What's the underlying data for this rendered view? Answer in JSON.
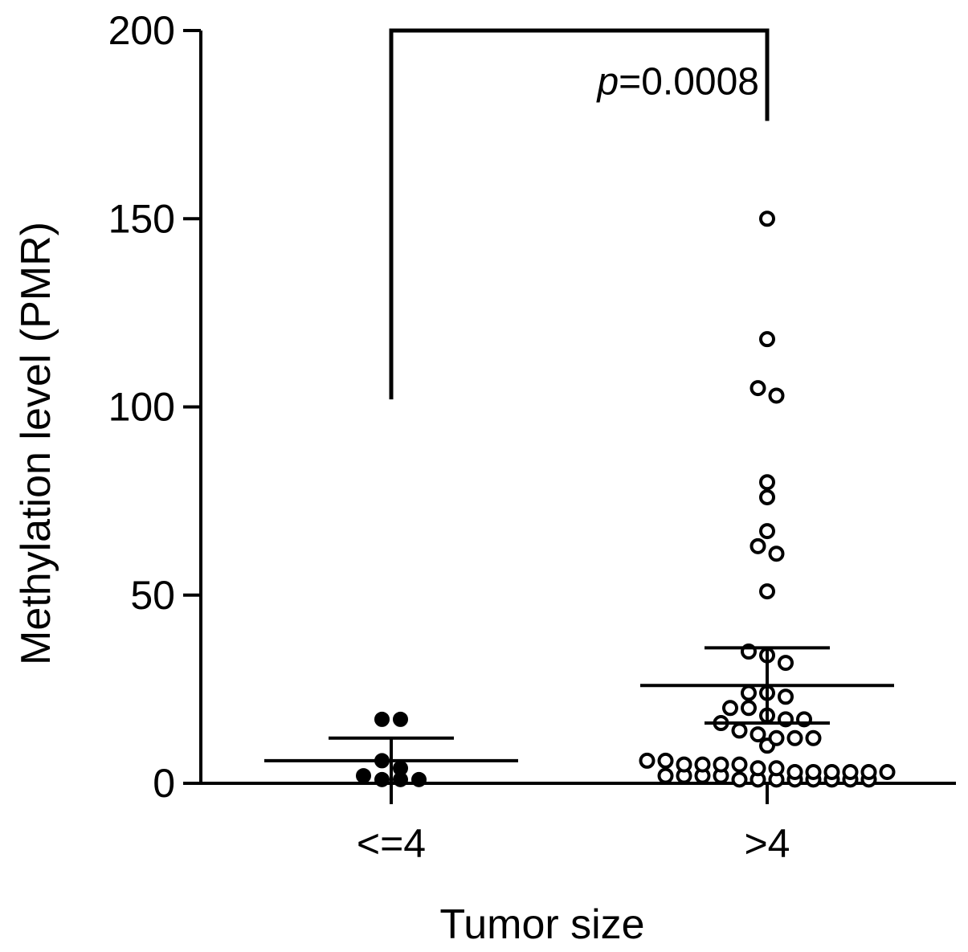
{
  "chart_data": {
    "type": "scatter",
    "subtype": "dot-plot-with-mean-sem",
    "title": "",
    "xlabel": "Tumor size",
    "ylabel": "Methylation level (PMR)",
    "ylim": [
      0,
      200
    ],
    "yticks": [
      "0",
      "50",
      "100",
      "150",
      "200"
    ],
    "grid": false,
    "categories": [
      "<=4",
      ">4"
    ],
    "groups": [
      {
        "category": "<=4",
        "marker": "filled",
        "mean": 6,
        "sem_low": 0,
        "sem_high": 12,
        "values": [
          17,
          17,
          6,
          4,
          2,
          1,
          1,
          1
        ]
      },
      {
        "category": ">4",
        "marker": "open",
        "mean": 26,
        "sem_low": 16,
        "sem_high": 36,
        "values": [
          150,
          118,
          105,
          103,
          80,
          76,
          67,
          63,
          61,
          51,
          35,
          34,
          32,
          24,
          24,
          23,
          20,
          20,
          18,
          17,
          17,
          16,
          14,
          13,
          12,
          12,
          12,
          10,
          6,
          6,
          5,
          5,
          5,
          5,
          4,
          4,
          3,
          3,
          3,
          3,
          3,
          3,
          2,
          2,
          2,
          2,
          1,
          1,
          1,
          1,
          1,
          1,
          1,
          1
        ]
      }
    ],
    "significance": {
      "prefix": "p",
      "value": "=0.0008"
    }
  }
}
